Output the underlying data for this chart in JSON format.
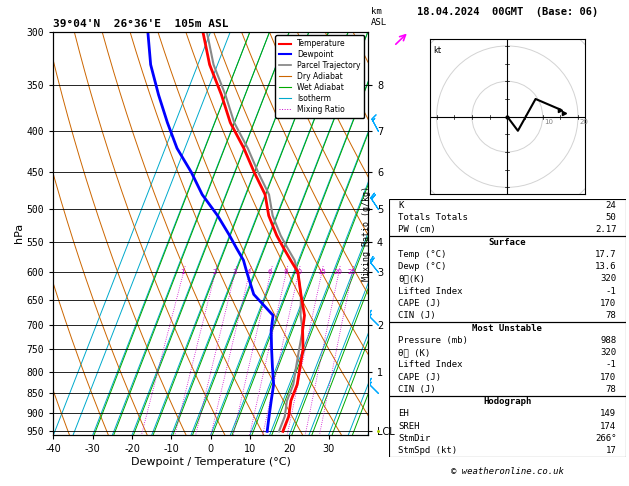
{
  "title_left": "39°04'N  26°36'E  105m ASL",
  "title_right": "18.04.2024  00GMT  (Base: 06)",
  "xlabel": "Dewpoint / Temperature (°C)",
  "ylabel_left": "hPa",
  "pressure_levels": [
    300,
    350,
    400,
    450,
    500,
    550,
    600,
    650,
    700,
    750,
    800,
    850,
    900,
    950
  ],
  "pressure_labels": [
    "300",
    "350",
    "400",
    "450",
    "500",
    "550",
    "600",
    "650",
    "700",
    "750",
    "800",
    "850",
    "900",
    "950"
  ],
  "temp_xticks": [
    -40,
    -30,
    -20,
    -10,
    0,
    10,
    20,
    30
  ],
  "isotherm_temps": [
    -40,
    -35,
    -30,
    -25,
    -20,
    -15,
    -10,
    -5,
    0,
    5,
    10,
    15,
    20,
    25,
    30,
    35,
    40
  ],
  "dry_adiabat_color": "#cc6600",
  "wet_adiabat_color": "#00aa00",
  "isotherm_color": "#00aacc",
  "mixing_ratio_color": "#cc00cc",
  "temp_color": "#ff0000",
  "dewp_color": "#0000ff",
  "parcel_color": "#888888",
  "km_labels": [
    "8",
    "7",
    "6",
    "5",
    "4",
    "3",
    "2",
    "1",
    "LCL"
  ],
  "km_pressures": [
    350,
    400,
    450,
    500,
    550,
    600,
    700,
    800,
    950
  ],
  "mixing_ratio_values": [
    1,
    2,
    3,
    4,
    6,
    8,
    10,
    15,
    20,
    25
  ],
  "stats": {
    "K": 24,
    "Totals_Totals": 50,
    "PW_cm": "2.17",
    "Surface_Temp": "17.7",
    "Surface_Dewp": "13.6",
    "Surface_theta_e": 320,
    "Surface_Lifted_Index": -1,
    "Surface_CAPE": 170,
    "Surface_CIN": 78,
    "MU_Pressure": 988,
    "MU_theta_e": 320,
    "MU_Lifted_Index": -1,
    "MU_CAPE": 170,
    "MU_CIN": 78,
    "Hodo_EH": 149,
    "Hodo_SREH": 174,
    "Hodo_StmDir": "266°",
    "Hodo_StmSpd": 17
  },
  "temp_profile_p": [
    300,
    330,
    360,
    390,
    420,
    450,
    480,
    510,
    540,
    560,
    580,
    600,
    640,
    680,
    710,
    750,
    790,
    830,
    870,
    910,
    950
  ],
  "temp_profile_t": [
    -42,
    -37,
    -31,
    -26,
    -20,
    -15,
    -10,
    -7,
    -3,
    0,
    3,
    6,
    9,
    12,
    13,
    15,
    16,
    17,
    17,
    18,
    18
  ],
  "dewp_profile_p": [
    300,
    330,
    360,
    390,
    420,
    450,
    480,
    510,
    540,
    560,
    580,
    600,
    640,
    680,
    710,
    750,
    790,
    830,
    870,
    910,
    950
  ],
  "dewp_profile_t": [
    -56,
    -52,
    -47,
    -42,
    -37,
    -31,
    -26,
    -20,
    -15,
    -12,
    -9,
    -7,
    -3,
    4,
    5,
    7,
    9,
    11,
    12,
    13,
    14
  ],
  "parcel_profile_p": [
    300,
    330,
    360,
    390,
    420,
    450,
    480,
    510,
    540,
    560,
    580,
    600,
    640,
    680,
    710,
    750,
    790,
    830,
    870,
    910,
    950
  ],
  "parcel_profile_t": [
    -41,
    -36,
    -30,
    -25,
    -19,
    -14,
    -9,
    -6,
    -2,
    1,
    4,
    6,
    9,
    11,
    13,
    14,
    15,
    16,
    16,
    17,
    17
  ],
  "copyright": "© weatheronline.co.uk",
  "P_min": 300,
  "P_max": 960,
  "skew": 40,
  "wind_barb_pressures": [
    400,
    500,
    600,
    700,
    850,
    950
  ],
  "wind_barb_u": [
    8,
    10,
    12,
    12,
    10,
    0
  ],
  "wind_barb_v": [
    -15,
    -15,
    -15,
    -12,
    -10,
    0
  ],
  "wind_barb_colors": [
    "#00aaff",
    "#00aaff",
    "#00aaff",
    "#00aaff",
    "#00aaff",
    "#aacc00"
  ],
  "hodo_pts_u": [
    0.0,
    3.0,
    8.0,
    15.0
  ],
  "hodo_pts_v": [
    0.0,
    -4.0,
    5.0,
    2.0
  ],
  "storm_u": 16.0,
  "storm_v": 1.0
}
